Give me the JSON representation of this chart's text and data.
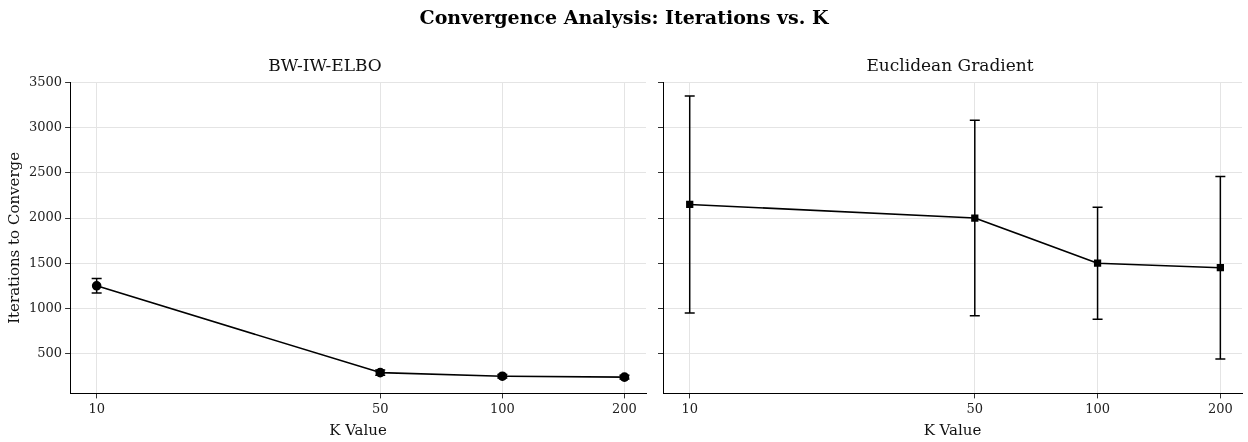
{
  "chart_data": [
    {
      "type": "line",
      "title": "BW-IW-ELBO",
      "xlabel": "K Value",
      "ylabel": "Iterations to Converge",
      "annotations": [
        "Convergence Analysis: Iterations vs. K"
      ],
      "log": "x",
      "x": [
        10,
        50,
        100,
        200
      ],
      "xlim": [
        8.6,
        226
      ],
      "xticks": [
        10,
        50,
        100,
        200
      ],
      "ylim": [
        60,
        3500
      ],
      "yticks": [
        500,
        1000,
        1500,
        2000,
        2500,
        3000,
        3500
      ],
      "grid": true,
      "marker": "circle",
      "line_style": "solid",
      "series": [
        {
          "color": "#000000",
          "values": [
            1250,
            290,
            250,
            240
          ],
          "errors": [
            80,
            30,
            20,
            20
          ]
        }
      ]
    },
    {
      "type": "line",
      "title": "Euclidean Gradient",
      "xlabel": "K Value",
      "log": "x",
      "x": [
        10,
        50,
        100,
        200
      ],
      "xlim": [
        8.6,
        226
      ],
      "xticks": [
        10,
        50,
        100,
        200
      ],
      "ylim": [
        60,
        3500
      ],
      "yticks": [
        500,
        1000,
        1500,
        2000,
        2500,
        3000,
        3500
      ],
      "tick_labels": "x",
      "grid": true,
      "marker": "square",
      "line_style": "solid",
      "series": [
        {
          "color": "#000000",
          "values": [
            2150,
            2000,
            1500,
            1450
          ],
          "errors": [
            1200,
            1080,
            620,
            1010
          ]
        }
      ]
    }
  ]
}
